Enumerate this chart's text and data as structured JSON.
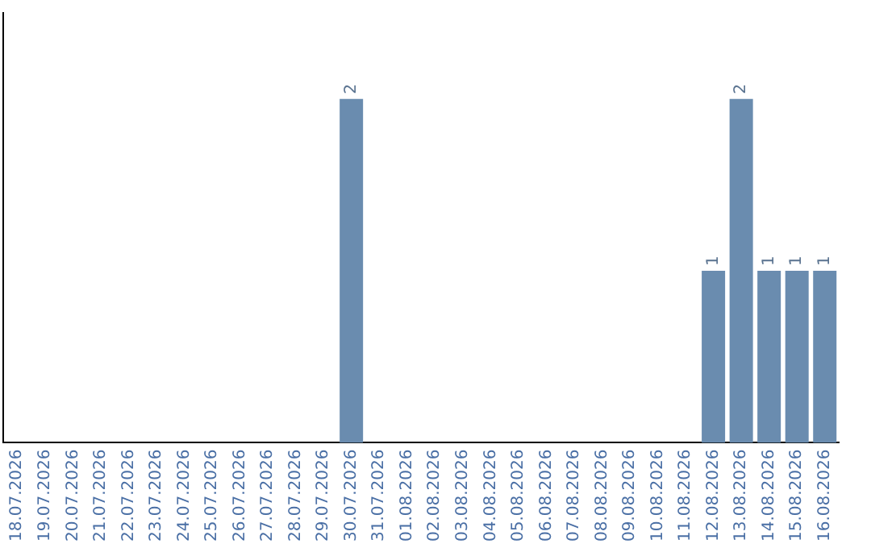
{
  "chart_data": {
    "type": "bar",
    "categories": [
      "18.07.2026",
      "19.07.2026",
      "20.07.2026",
      "21.07.2026",
      "22.07.2026",
      "23.07.2026",
      "24.07.2026",
      "25.07.2026",
      "26.07.2026",
      "27.07.2026",
      "28.07.2026",
      "29.07.2026",
      "30.07.2026",
      "31.07.2026",
      "01.08.2026",
      "02.08.2026",
      "03.08.2026",
      "04.08.2026",
      "05.08.2026",
      "06.08.2026",
      "07.08.2026",
      "08.08.2026",
      "09.08.2026",
      "10.08.2026",
      "11.08.2026",
      "12.08.2026",
      "13.08.2026",
      "14.08.2026",
      "15.08.2026",
      "16.08.2026"
    ],
    "values": [
      null,
      null,
      null,
      null,
      null,
      null,
      null,
      null,
      null,
      null,
      null,
      null,
      2,
      null,
      null,
      null,
      null,
      null,
      null,
      null,
      null,
      null,
      null,
      null,
      null,
      1,
      2,
      1,
      1,
      1
    ],
    "data_labels": true,
    "color": "#6a8caf",
    "grid": false,
    "legend": false,
    "tick_labels": "x"
  }
}
